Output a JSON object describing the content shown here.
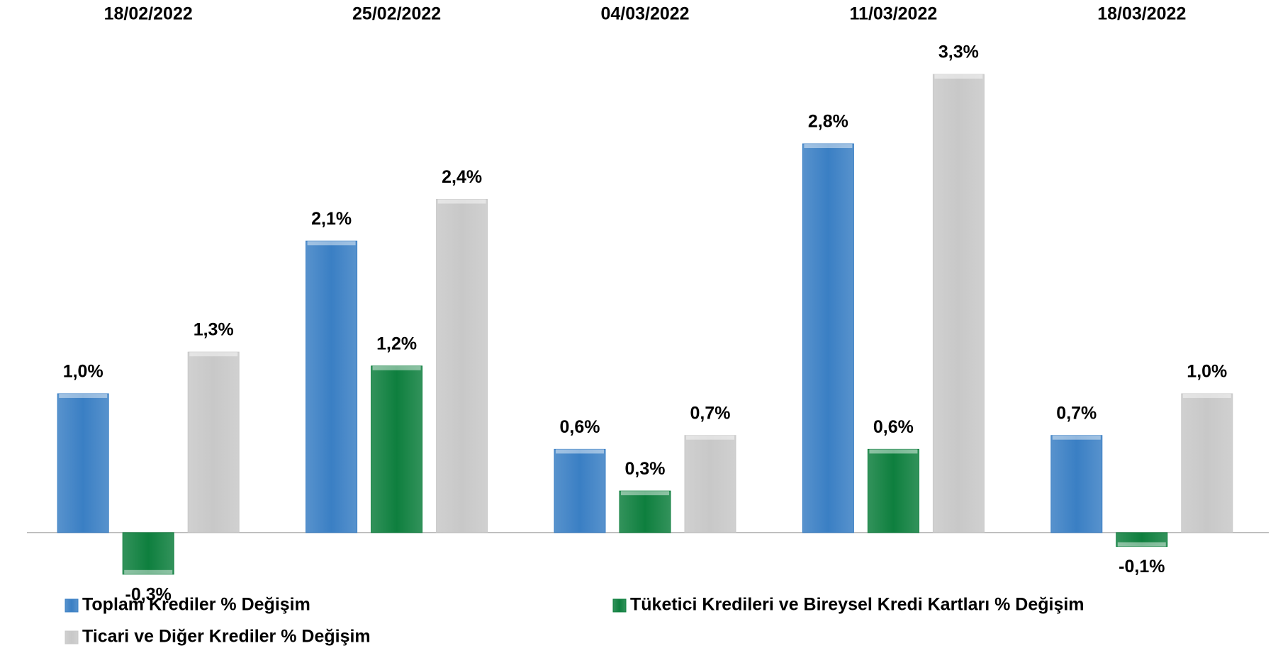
{
  "chart_data": {
    "type": "bar",
    "categories": [
      "18/02/2022",
      "25/02/2022",
      "04/03/2022",
      "11/03/2022",
      "18/03/2022"
    ],
    "series": [
      {
        "name": "Toplam Krediler % Değişim",
        "color": "#3a7fc4",
        "values": [
          1.0,
          2.1,
          0.6,
          2.8,
          0.7
        ],
        "value_labels": [
          "1,0%",
          "2,1%",
          "0,6%",
          "2,8%",
          "0,7%"
        ]
      },
      {
        "name": "Tüketici Kredileri ve Bireysel Kredi Kartları % Değişim",
        "color": "#0e7f3e",
        "values": [
          -0.3,
          1.2,
          0.3,
          0.6,
          -0.1
        ],
        "value_labels": [
          "-0,3%",
          "1,2%",
          "0,3%",
          "0,6%",
          "-0,1%"
        ]
      },
      {
        "name": "Ticari ve Diğer Krediler % Değişim",
        "color": "#c8c8c8",
        "values": [
          1.3,
          2.4,
          0.7,
          3.3,
          1.0
        ],
        "value_labels": [
          "1,3%",
          "2,4%",
          "0,7%",
          "3,3%",
          "1,0%"
        ]
      }
    ]
  }
}
